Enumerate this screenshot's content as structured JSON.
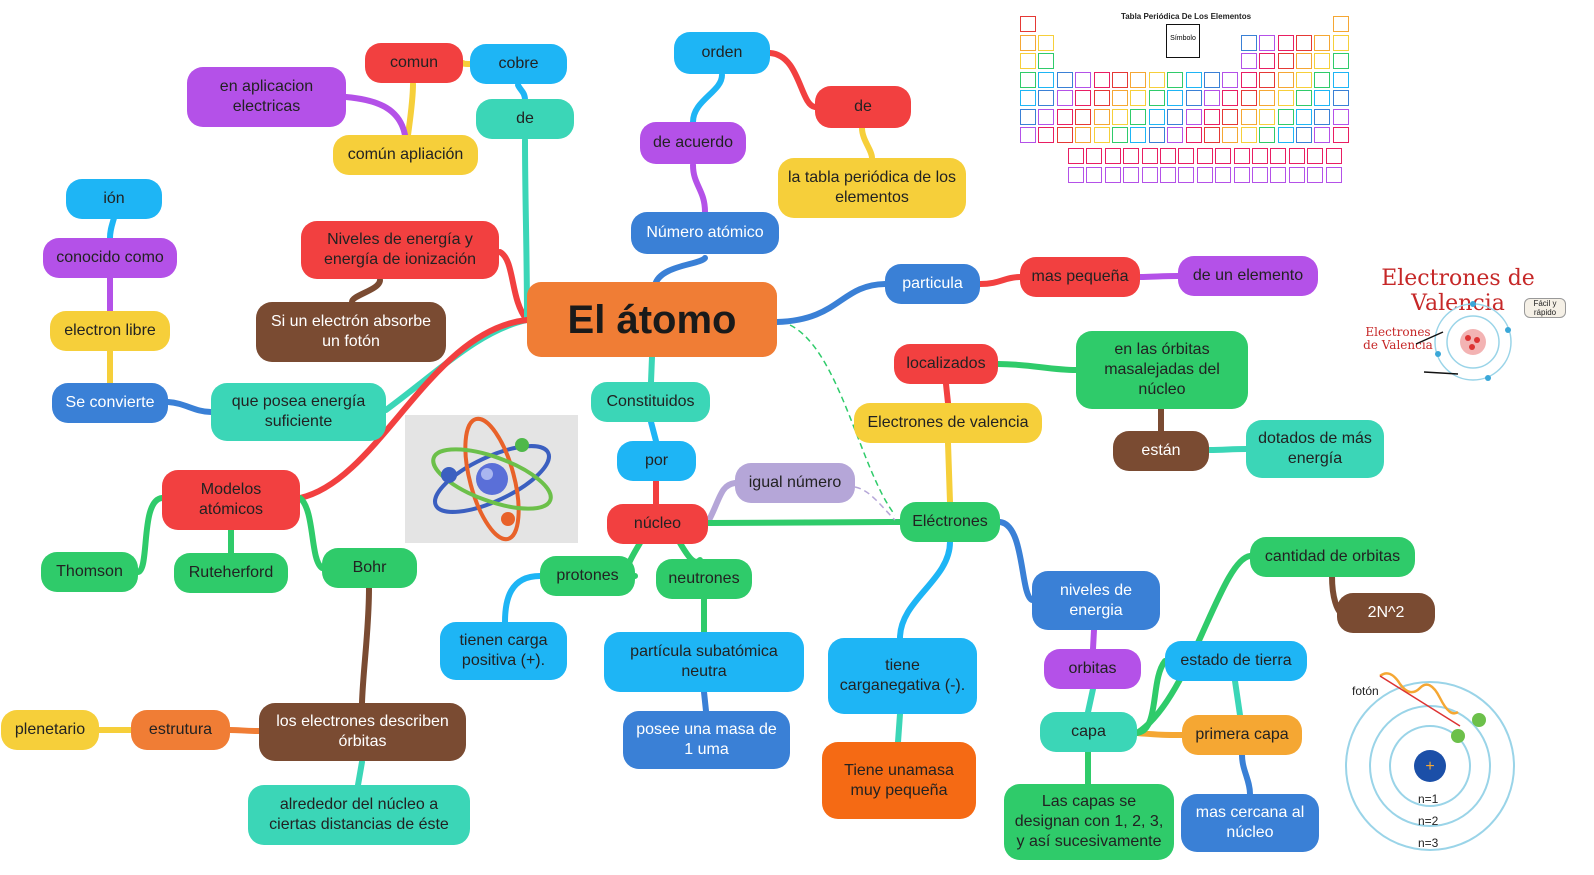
{
  "central": {
    "label": "El átomo"
  },
  "nodes": {
    "numero_atomico": "Número atómico",
    "de_acuerdo": "de acuerdo",
    "orden": "orden",
    "de_tabla": "de",
    "tabla_periodica": "la tabla periódica de los elementos",
    "particula": "particula",
    "mas_pequena": "mas pequeña",
    "de_un_elemento": "de un elemento",
    "niveles_energia_ionizacion": "Niveles de energía y energía de ionización",
    "si_un_electron": "Si un electrón absorbe un fotón",
    "que_posea": "que posea energía suficiente",
    "se_convierte": "Se convierte",
    "electron_libre": "electron libre",
    "conocido_como": "conocido como",
    "ion": "ión",
    "de_cobre": "de",
    "cobre": "cobre",
    "comun": "comun",
    "comun_aplicacion": "común apliación",
    "aplicacion_electricas": "en aplicacion electricas",
    "modelos_atomicos": "Modelos atómicos",
    "thomson": "Thomson",
    "ruteherford": "Ruteherford",
    "bohr": "Bohr",
    "electrones_describen": "los electrones describen órbitas",
    "estrutura": "estrutura",
    "plenetario": "plenetario",
    "alrededor_nucleo": "alrededor del núcleo a ciertas distancias de éste",
    "constituidos": "Constituidos",
    "por": "por",
    "nucleo": "núcleo",
    "igual_numero": "igual número",
    "protones": "protones",
    "carga_positiva": "tienen carga positiva (+).",
    "neutrones": "neutrones",
    "particula_neutra": "partícula subatómica neutra",
    "masa_uma": "posee una masa de 1 uma",
    "electrones": "Eléctrones",
    "electrones_valencia": "Electrones de valencia",
    "localizados": "localizados",
    "orbitas_alejadas": "en las órbitas masalejadas del núcleo",
    "estan": "están",
    "dotados_energia": "dotados de más energía",
    "carga_negativa": "tiene carganegativa (-).",
    "masa_pequena": "Tiene unamasa muy pequeña",
    "niveles_energia": "niveles de energia",
    "orbitas": "orbitas",
    "capa": "capa",
    "capas_designan": "Las capas se designan con 1, 2, 3, y así sucesivamente",
    "primera_capa": "primera capa",
    "mas_cercana": "mas cercana al núcleo",
    "estado_tierra": "estado de tierra",
    "cantidad_orbitas": "cantidad de orbitas",
    "formula": "2N^2"
  },
  "images": {
    "periodic_table": {
      "title": "Tabla Periódica De Los Elementos",
      "key_label": "Símbolo"
    },
    "valence": {
      "title": "Electrones de Valencia",
      "side_label": "Electrones de Valencia",
      "badge": "Fácil y rápido"
    },
    "bohr": {
      "photon": "fotón",
      "n1": "n=1",
      "n2": "n=2",
      "n3": "n=3"
    }
  },
  "colors": {
    "orange": "#f07d35",
    "blue": "#1eb5f5",
    "darkblue": "#3a80d6",
    "red": "#f24040",
    "purple": "#b451e8",
    "yellow": "#f6cf3a",
    "teal": "#3bd6b7",
    "green": "#2fcb6a",
    "brown": "#7a4b32",
    "lavender": "#b5a6d8",
    "amber": "#f5a733",
    "deeporange": "#f56a14"
  }
}
